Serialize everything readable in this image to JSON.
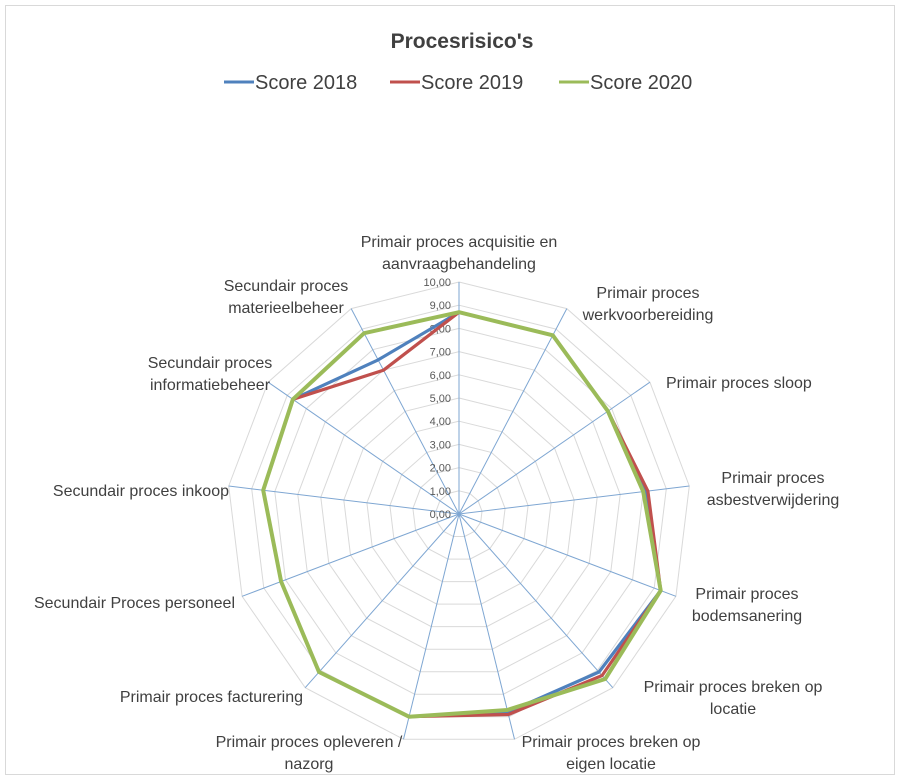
{
  "chart_data": {
    "type": "radar",
    "title": "Procesrisico's",
    "categories": [
      [
        "Primair proces acquisitie en",
        "aanvraagbehandeling"
      ],
      [
        "Primair proces",
        "werkvoorbereiding"
      ],
      [
        "Primair proces sloop"
      ],
      [
        "Primair proces",
        "asbestverwijdering"
      ],
      [
        "Primair proces",
        "bodemsanering"
      ],
      [
        "Primair proces breken op",
        "locatie"
      ],
      [
        "Primair proces breken op",
        "eigen locatie"
      ],
      [
        "Primair proces opleveren /",
        "nazorg"
      ],
      [
        "Primair proces facturering"
      ],
      [
        "Secundair Proces personeel"
      ],
      [
        "Secundair proces inkoop"
      ],
      [
        "Secundair proces",
        "informatiebeheer"
      ],
      [
        "Secundair proces",
        "materieelbeheer"
      ]
    ],
    "radial_ticks": [
      "0,00",
      "1,00",
      "2,00",
      "3,00",
      "4,00",
      "5,00",
      "6,00",
      "7,00",
      "8,00",
      "9,00",
      "10,00"
    ],
    "rmax": 10,
    "legend_position": "top",
    "series": [
      {
        "name": "Score 2018",
        "color": "#4f81bd",
        "values": [
          8.7,
          8.7,
          7.8,
          8.1,
          9.3,
          9.1,
          8.8,
          9.0,
          9.1,
          8.2,
          8.5,
          8.7,
          7.5
        ]
      },
      {
        "name": "Score 2019",
        "color": "#c0504d",
        "values": [
          8.7,
          8.7,
          7.8,
          8.2,
          9.3,
          9.3,
          8.9,
          9.0,
          9.1,
          8.2,
          8.5,
          8.7,
          7.0
        ]
      },
      {
        "name": "Score 2020",
        "color": "#9bbb59",
        "values": [
          8.7,
          8.7,
          7.8,
          8.0,
          9.3,
          9.5,
          8.7,
          9.0,
          9.1,
          8.2,
          8.5,
          8.7,
          8.8
        ]
      }
    ]
  }
}
